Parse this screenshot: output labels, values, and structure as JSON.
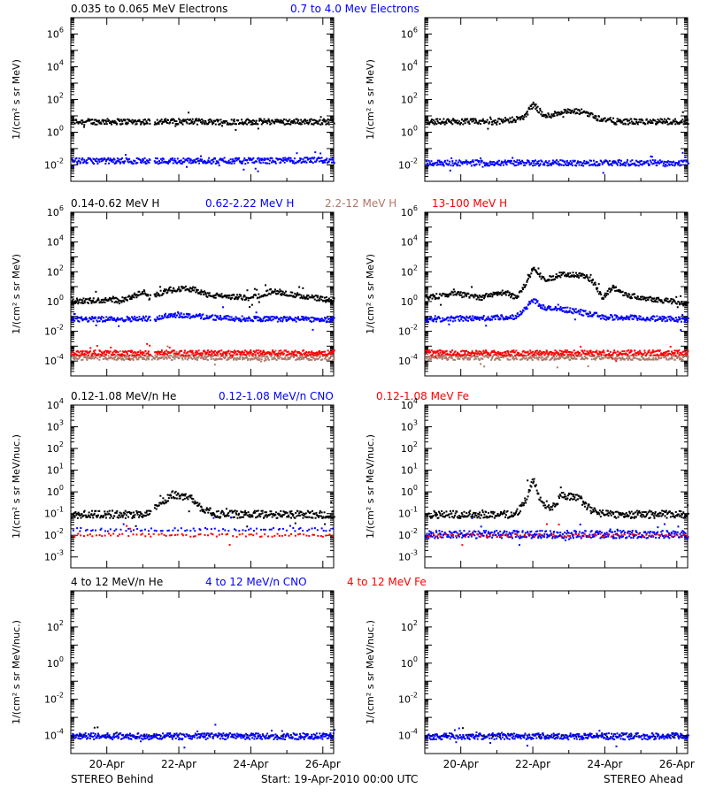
{
  "colors": {
    "black": "#000000",
    "blue": "#0000ff",
    "brown": "#b07868",
    "red": "#ff0000",
    "frame": "#000000"
  },
  "footer": {
    "left": "STEREO Behind",
    "center": "Start: 19-Apr-2010 00:00 UTC",
    "right": "STEREO Ahead"
  },
  "chart_data": [
    {
      "type": "scatter",
      "row": "electrons",
      "legend": [
        {
          "text": "0.035 to 0.065 MeV Electrons",
          "color": "black"
        },
        {
          "text": "0.7 to 4.0 Mev Electrons",
          "color": "blue"
        }
      ],
      "ylabel": "1/(cm² s sr MeV)",
      "yscale": "log",
      "ylim_exp": [
        -3,
        7
      ],
      "yticks_exp": [
        -2,
        0,
        2,
        4,
        6
      ],
      "x_unit": "days since 19-Apr-2010",
      "xlim": [
        0,
        7.3
      ],
      "panels": [
        {
          "name": "STEREO Behind",
          "series": [
            {
              "name": "0.035 to 0.065 MeV Electrons",
              "color": "black",
              "points": [
                [
                  0,
                  5
                ],
                [
                  1.5,
                  5
                ],
                [
                  2.2,
                  5
                ],
                [
                  3,
                  5
                ],
                [
                  4,
                  5
                ],
                [
                  5,
                  5
                ],
                [
                  6,
                  5
                ],
                [
                  7.3,
                  5
                ]
              ],
              "gap": [
                2.2,
                2.3
              ]
            },
            {
              "name": "0.7 to 4.0 Mev Electrons",
              "color": "blue",
              "points": [
                [
                  0,
                  0.02
                ],
                [
                  2,
                  0.02
                ],
                [
                  3,
                  0.02
                ],
                [
                  5,
                  0.02
                ],
                [
                  7.3,
                  0.022
                ]
              ],
              "gap": [
                2.2,
                2.3
              ]
            }
          ]
        },
        {
          "name": "STEREO Ahead",
          "series": [
            {
              "name": "0.035 to 0.065 MeV Electrons",
              "color": "black",
              "points": [
                [
                  0,
                  5
                ],
                [
                  2,
                  5
                ],
                [
                  2.7,
                  8
                ],
                [
                  3,
                  60
                ],
                [
                  3.3,
                  10
                ],
                [
                  3.8,
                  20
                ],
                [
                  4.4,
                  20
                ],
                [
                  4.8,
                  8
                ],
                [
                  5.3,
                  5
                ],
                [
                  7.3,
                  5
                ]
              ]
            },
            {
              "name": "0.7 to 4.0 Mev Electrons",
              "color": "blue",
              "points": [
                [
                  0,
                  0.015
                ],
                [
                  3,
                  0.015
                ],
                [
                  5,
                  0.015
                ],
                [
                  7.3,
                  0.015
                ]
              ]
            }
          ]
        }
      ]
    },
    {
      "type": "scatter",
      "row": "protons",
      "legend": [
        {
          "text": "0.14-0.62 MeV H",
          "color": "black"
        },
        {
          "text": "0.62-2.22 MeV H",
          "color": "blue"
        },
        {
          "text": "2.2-12 MeV H",
          "color": "brown"
        },
        {
          "text": "13-100 MeV H",
          "color": "red"
        }
      ],
      "ylabel": "1/(cm² s sr MeV)",
      "yscale": "log",
      "ylim_exp": [
        -5,
        6
      ],
      "yticks_exp": [
        -4,
        -2,
        0,
        2,
        4,
        6
      ],
      "x_unit": "days since 19-Apr-2010",
      "xlim": [
        0,
        7.3
      ],
      "panels": [
        {
          "name": "STEREO Behind",
          "series": [
            {
              "name": "0.14-0.62 MeV H",
              "color": "black",
              "points": [
                [
                  0,
                  1.2
                ],
                [
                  1.5,
                  1.5
                ],
                [
                  2,
                  5
                ],
                [
                  2.2,
                  2
                ],
                [
                  2.3,
                  3
                ],
                [
                  2.8,
                  8
                ],
                [
                  3.4,
                  8
                ],
                [
                  3.8,
                  3
                ],
                [
                  5,
                  2
                ],
                [
                  5.6,
                  6
                ],
                [
                  6.2,
                  3
                ],
                [
                  7.3,
                  1.3
                ]
              ],
              "gap": [
                2.2,
                2.3
              ]
            },
            {
              "name": "0.62-2.22 MeV H",
              "color": "blue",
              "points": [
                [
                  0,
                  0.07
                ],
                [
                  2,
                  0.08
                ],
                [
                  2.3,
                  0.08
                ],
                [
                  2.8,
                  0.15
                ],
                [
                  3.4,
                  0.12
                ],
                [
                  4.5,
                  0.08
                ],
                [
                  7.3,
                  0.07
                ]
              ],
              "gap": [
                2.2,
                2.3
              ]
            },
            {
              "name": "2.2-12 MeV H",
              "color": "brown",
              "points": [
                [
                  0,
                  0.0002
                ],
                [
                  7.3,
                  0.0002
                ]
              ]
            },
            {
              "name": "13-100 MeV H",
              "color": "red",
              "points": [
                [
                  0,
                  0.0004
                ],
                [
                  7.3,
                  0.0004
                ]
              ],
              "gap": [
                2.2,
                2.3
              ]
            }
          ]
        },
        {
          "name": "STEREO Ahead",
          "series": [
            {
              "name": "0.14-0.62 MeV H",
              "color": "black",
              "points": [
                [
                  0,
                  2
                ],
                [
                  0.8,
                  4
                ],
                [
                  1.5,
                  2
                ],
                [
                  2.2,
                  5
                ],
                [
                  2.5,
                  2
                ],
                [
                  2.8,
                  20
                ],
                [
                  3,
                  250
                ],
                [
                  3.3,
                  30
                ],
                [
                  3.8,
                  80
                ],
                [
                  4.4,
                  60
                ],
                [
                  4.7,
                  20
                ],
                [
                  4.9,
                  2
                ],
                [
                  5.2,
                  10
                ],
                [
                  5.6,
                  3
                ],
                [
                  6.5,
                  1.5
                ],
                [
                  7.3,
                  0.8
                ]
              ]
            },
            {
              "name": "0.62-2.22 MeV H",
              "color": "blue",
              "points": [
                [
                  0,
                  0.07
                ],
                [
                  2.5,
                  0.1
                ],
                [
                  3,
                  1.5
                ],
                [
                  3.3,
                  0.4
                ],
                [
                  4,
                  0.3
                ],
                [
                  5,
                  0.1
                ],
                [
                  7.3,
                  0.07
                ]
              ]
            },
            {
              "name": "2.2-12 MeV H",
              "color": "brown",
              "points": [
                [
                  0,
                  0.0002
                ],
                [
                  7.3,
                  0.0002
                ]
              ]
            },
            {
              "name": "13-100 MeV H",
              "color": "red",
              "points": [
                [
                  0,
                  0.0004
                ],
                [
                  7.3,
                  0.0004
                ]
              ]
            }
          ]
        }
      ]
    },
    {
      "type": "scatter",
      "row": "heavy-low",
      "legend": [
        {
          "text": "0.12-1.08 MeV/n He",
          "color": "black"
        },
        {
          "text": "0.12-1.08 MeV/n CNO",
          "color": "blue"
        },
        {
          "text": "0.12-1.08 MeV Fe",
          "color": "red"
        }
      ],
      "ylabel": "1/(cm² s sr MeV/nuc.)",
      "yscale": "log",
      "ylim_exp": [
        -3.5,
        4
      ],
      "yticks_exp": [
        -3,
        -2,
        -1,
        0,
        1,
        2,
        3,
        4
      ],
      "x_unit": "days since 19-Apr-2010",
      "xlim": [
        0,
        7.3
      ],
      "panels": [
        {
          "name": "STEREO Behind",
          "series": [
            {
              "name": "0.12-1.08 MeV/n He",
              "color": "black",
              "points": [
                [
                  0,
                  0.1
                ],
                [
                  2.2,
                  0.1
                ],
                [
                  2.4,
                  0.3
                ],
                [
                  2.8,
                  0.8
                ],
                [
                  3.3,
                  0.6
                ],
                [
                  3.6,
                  0.2
                ],
                [
                  4,
                  0.1
                ],
                [
                  7.3,
                  0.1
                ]
              ],
              "gap": [
                2.2,
                2.3
              ]
            },
            {
              "name": "0.12-1.08 MeV/n CNO",
              "color": "blue",
              "points": [
                [
                  0,
                  0.02
                ],
                [
                  7.3,
                  0.02
                ]
              ],
              "sparse": true
            },
            {
              "name": "0.12-1.08 MeV Fe",
              "color": "red",
              "points": [
                [
                  0,
                  0.011
                ],
                [
                  7.3,
                  0.011
                ]
              ],
              "sparse": true
            }
          ]
        },
        {
          "name": "STEREO Ahead",
          "series": [
            {
              "name": "0.12-1.08 MeV/n He",
              "color": "black",
              "points": [
                [
                  0,
                  0.1
                ],
                [
                  2.5,
                  0.1
                ],
                [
                  2.8,
                  0.5
                ],
                [
                  3,
                  4
                ],
                [
                  3.2,
                  0.4
                ],
                [
                  3.5,
                  0.2
                ],
                [
                  3.8,
                  0.8
                ],
                [
                  4.3,
                  0.5
                ],
                [
                  4.6,
                  0.15
                ],
                [
                  5,
                  0.1
                ],
                [
                  7.3,
                  0.1
                ]
              ]
            },
            {
              "name": "0.12-1.08 MeV/n CNO",
              "color": "blue",
              "points": [
                [
                  0,
                  0.012
                ],
                [
                  7.3,
                  0.012
                ]
              ]
            },
            {
              "name": "0.12-1.08 MeV Fe",
              "color": "red",
              "points": [
                [
                  0,
                  0.011
                ],
                [
                  7.3,
                  0.011
                ]
              ],
              "sparse": true
            }
          ]
        }
      ]
    },
    {
      "type": "scatter",
      "row": "heavy-high",
      "legend": [
        {
          "text": "4 to 12 MeV/n He",
          "color": "black"
        },
        {
          "text": "4 to 12 MeV/n CNO",
          "color": "blue"
        },
        {
          "text": "4 to 12 MeV Fe",
          "color": "red"
        }
      ],
      "ylabel": "1/(cm² s sr MeV/nuc.)",
      "yscale": "log",
      "ylim_exp": [
        -5,
        4
      ],
      "yticks_exp": [
        -4,
        -2,
        0,
        2
      ],
      "x_unit": "days since 19-Apr-2010",
      "xlim": [
        0,
        7.3
      ],
      "xticks": [
        {
          "x": 1,
          "label": "20-Apr"
        },
        {
          "x": 3,
          "label": "22-Apr"
        },
        {
          "x": 5,
          "label": "24-Apr"
        },
        {
          "x": 7,
          "label": "26-Apr"
        }
      ],
      "panels": [
        {
          "name": "STEREO Behind",
          "series": [
            {
              "name": "4 to 12 MeV/n He",
              "color": "black",
              "points": [
                [
                  0,
                  0.00011
                ],
                [
                  7.3,
                  0.00011
                ]
              ],
              "sparse": true
            },
            {
              "name": "4 to 12 MeV/n CNO",
              "color": "blue",
              "points": [
                [
                  0,
                  0.0001
                ],
                [
                  7.3,
                  0.0001
                ]
              ]
            }
          ]
        },
        {
          "name": "STEREO Ahead",
          "series": [
            {
              "name": "4 to 12 MeV/n He",
              "color": "black",
              "points": [
                [
                  0,
                  0.00011
                ],
                [
                  7.3,
                  0.00011
                ]
              ],
              "sparse": true
            },
            {
              "name": "4 to 12 MeV/n CNO",
              "color": "blue",
              "points": [
                [
                  0,
                  0.0001
                ],
                [
                  7.3,
                  0.0001
                ]
              ]
            }
          ]
        }
      ]
    }
  ]
}
